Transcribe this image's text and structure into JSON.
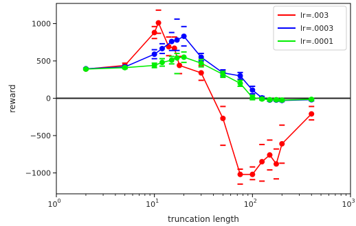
{
  "chart_data": {
    "type": "line",
    "xlabel": "truncation length",
    "ylabel": "reward",
    "xscale": "log",
    "xlim": [
      1,
      1000
    ],
    "ylim": [
      -1280,
      1270
    ],
    "x_tick_labels": [
      {
        "value": 1,
        "base": "10",
        "exp": "0"
      },
      {
        "value": 10,
        "base": "10",
        "exp": "1"
      },
      {
        "value": 100,
        "base": "10",
        "exp": "2"
      },
      {
        "value": 1000,
        "base": "10",
        "exp": "3"
      }
    ],
    "y_ticks": [
      1000,
      500,
      0,
      -500,
      -1000
    ],
    "y_tick_labels": [
      "1000",
      "500",
      "0",
      "−500",
      "−1000"
    ],
    "reference_line_y": 0,
    "legend_position": "top-right",
    "series": [
      {
        "name": "lr=.003",
        "color": "#ff0000",
        "x": [
          2,
          5,
          10,
          11,
          14,
          16,
          18,
          30,
          50,
          75,
          100,
          125,
          150,
          175,
          200,
          400
        ],
        "y": [
          390,
          440,
          880,
          1010,
          690,
          670,
          440,
          340,
          -270,
          -1020,
          -1020,
          -850,
          -760,
          -880,
          -610,
          -210
        ],
        "err_hi": [
          400,
          470,
          960,
          1180,
          820,
          820,
          560,
          440,
          -110,
          -950,
          -920,
          -620,
          -560,
          -680,
          -360,
          -110
        ],
        "err_lo": [
          380,
          410,
          800,
          870,
          570,
          530,
          330,
          240,
          -630,
          -1150,
          -1090,
          -1110,
          -960,
          -1080,
          -870,
          -290
        ]
      },
      {
        "name": "lr=.0003",
        "color": "#0000ff",
        "x": [
          2,
          5,
          10,
          12,
          15,
          17,
          20,
          30,
          50,
          75,
          100,
          125,
          150,
          175,
          200,
          400
        ],
        "y": [
          395,
          420,
          590,
          665,
          760,
          780,
          830,
          550,
          340,
          300,
          110,
          5,
          -25,
          -25,
          -30,
          -20
        ],
        "err_hi": [
          405,
          440,
          650,
          730,
          880,
          1060,
          960,
          600,
          380,
          345,
          160,
          25,
          -10,
          -10,
          -15,
          -5
        ],
        "err_lo": [
          385,
          400,
          530,
          600,
          640,
          640,
          700,
          500,
          300,
          255,
          60,
          -15,
          -40,
          -40,
          -45,
          -35
        ]
      },
      {
        "name": "lr=.0001",
        "color": "#00ee00",
        "x": [
          2,
          5,
          10,
          12,
          15,
          17,
          20,
          30,
          50,
          75,
          100,
          125,
          150,
          175,
          200,
          400
        ],
        "y": [
          390,
          410,
          440,
          480,
          510,
          540,
          550,
          470,
          320,
          200,
          10,
          -10,
          -20,
          -20,
          -25,
          -15
        ],
        "err_hi": [
          400,
          425,
          470,
          530,
          560,
          600,
          620,
          520,
          360,
          240,
          40,
          5,
          -5,
          -5,
          -10,
          0
        ],
        "err_lo": [
          380,
          395,
          410,
          430,
          460,
          330,
          480,
          420,
          280,
          160,
          -20,
          -25,
          -35,
          -35,
          -40,
          -30
        ]
      }
    ]
  }
}
